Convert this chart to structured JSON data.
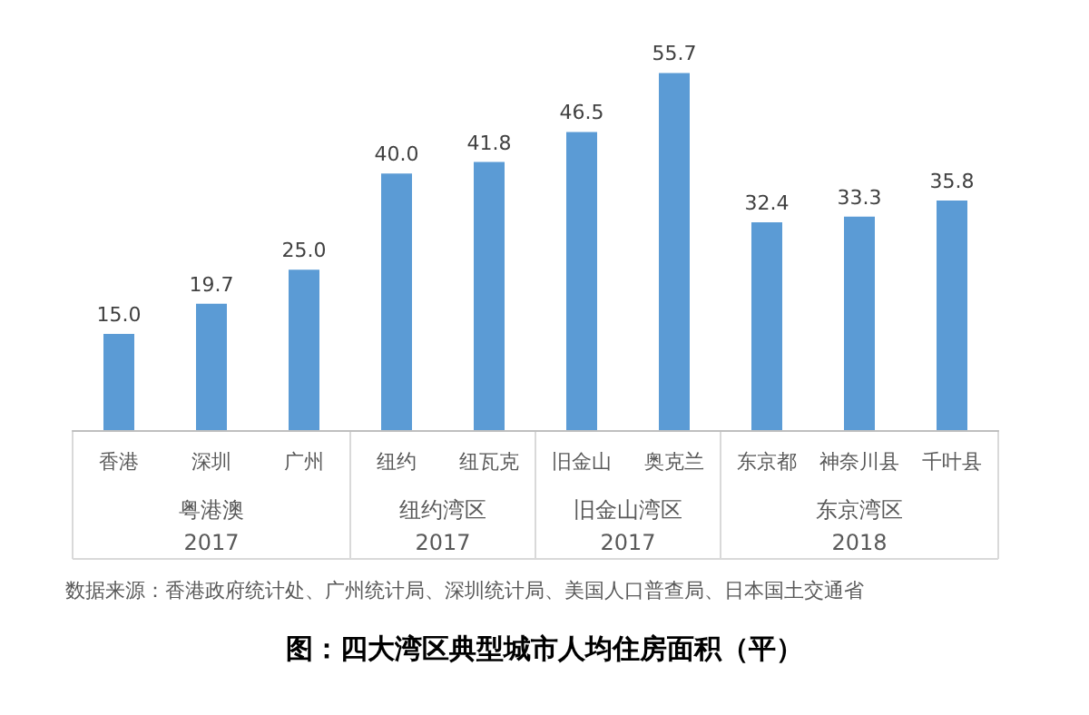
{
  "chart_data": {
    "type": "bar",
    "title": "图：四大湾区典型城市人均住房面积（平）",
    "categories": [
      "香港",
      "深圳",
      "广州",
      "纽约",
      "纽瓦克",
      "旧金山",
      "奥克兰",
      "东京都",
      "神奈川县",
      "千叶县"
    ],
    "values": [
      15.0,
      19.7,
      25.0,
      40.0,
      41.8,
      46.5,
      55.7,
      32.4,
      33.3,
      35.8
    ],
    "value_labels": [
      "15.0",
      "19.7",
      "25.0",
      "40.0",
      "41.8",
      "46.5",
      "55.7",
      "32.4",
      "33.3",
      "35.8"
    ],
    "color": "#5b9bd5",
    "annotations": [
      "粤港澳\n2017",
      "纽约湾区\n2017",
      "旧金山湾区\n2017",
      "东京湾区\n2018",
      "数据来源：香港政府统计处、广州统计局、深圳统计局、美国人口普查局、日本国土交通省"
    ],
    "grid": false
  }
}
